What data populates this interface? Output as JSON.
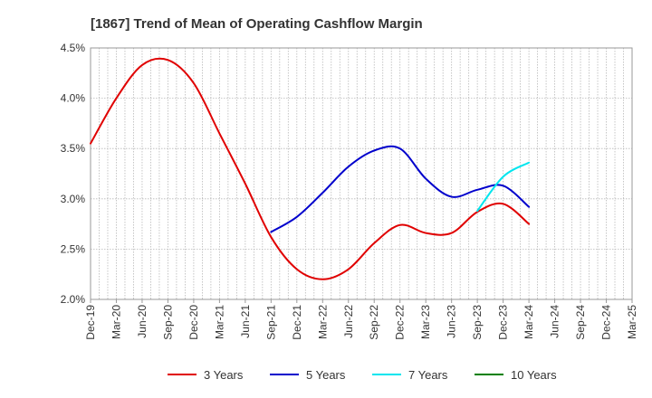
{
  "chart_data": {
    "type": "line",
    "title": "[1867]  Trend of Mean of Operating Cashflow Margin",
    "xlabel": "",
    "ylabel": "",
    "ylim": [
      2.0,
      4.5
    ],
    "yticks": [
      "4.5%",
      "4.0%",
      "3.5%",
      "3.0%",
      "2.5%",
      "2.0%"
    ],
    "ytick_values": [
      4.5,
      4.0,
      3.5,
      3.0,
      2.5,
      2.0
    ],
    "categories": [
      "Dec-19",
      "Mar-20",
      "Jun-20",
      "Sep-20",
      "Dec-20",
      "Mar-21",
      "Jun-21",
      "Sep-21",
      "Dec-21",
      "Mar-22",
      "Jun-22",
      "Sep-22",
      "Dec-22",
      "Mar-23",
      "Jun-23",
      "Sep-23",
      "Dec-23",
      "Mar-24",
      "Jun-24",
      "Sep-24",
      "Dec-24",
      "Mar-25"
    ],
    "grid": true,
    "legend_position": "bottom",
    "series": [
      {
        "name": "3 Years",
        "color": "#e00000",
        "points": [
          [
            "Dec-19",
            3.55
          ],
          [
            "Mar-20",
            4.0
          ],
          [
            "Jun-20",
            4.33
          ],
          [
            "Sep-20",
            4.38
          ],
          [
            "Dec-20",
            4.15
          ],
          [
            "Mar-21",
            3.65
          ],
          [
            "Jun-21",
            3.15
          ],
          [
            "Sep-21",
            2.62
          ],
          [
            "Dec-21",
            2.3
          ],
          [
            "Mar-22",
            2.2
          ],
          [
            "Jun-22",
            2.3
          ],
          [
            "Sep-22",
            2.56
          ],
          [
            "Dec-22",
            2.74
          ],
          [
            "Mar-23",
            2.66
          ],
          [
            "Jun-23",
            2.66
          ],
          [
            "Sep-23",
            2.87
          ],
          [
            "Dec-23",
            2.95
          ],
          [
            "Mar-24",
            2.75
          ]
        ]
      },
      {
        "name": "5 Years",
        "color": "#0000cc",
        "points": [
          [
            "Sep-21",
            2.67
          ],
          [
            "Dec-21",
            2.82
          ],
          [
            "Mar-22",
            3.06
          ],
          [
            "Jun-22",
            3.32
          ],
          [
            "Sep-22",
            3.48
          ],
          [
            "Dec-22",
            3.5
          ],
          [
            "Mar-23",
            3.2
          ],
          [
            "Jun-23",
            3.02
          ],
          [
            "Sep-23",
            3.09
          ],
          [
            "Dec-23",
            3.13
          ],
          [
            "Mar-24",
            2.92
          ]
        ]
      },
      {
        "name": "7 Years",
        "color": "#00e5ee",
        "points": [
          [
            "Sep-23",
            2.88
          ],
          [
            "Dec-23",
            3.22
          ],
          [
            "Mar-24",
            3.36
          ]
        ]
      },
      {
        "name": "10 Years",
        "color": "#008000",
        "points": []
      }
    ]
  }
}
